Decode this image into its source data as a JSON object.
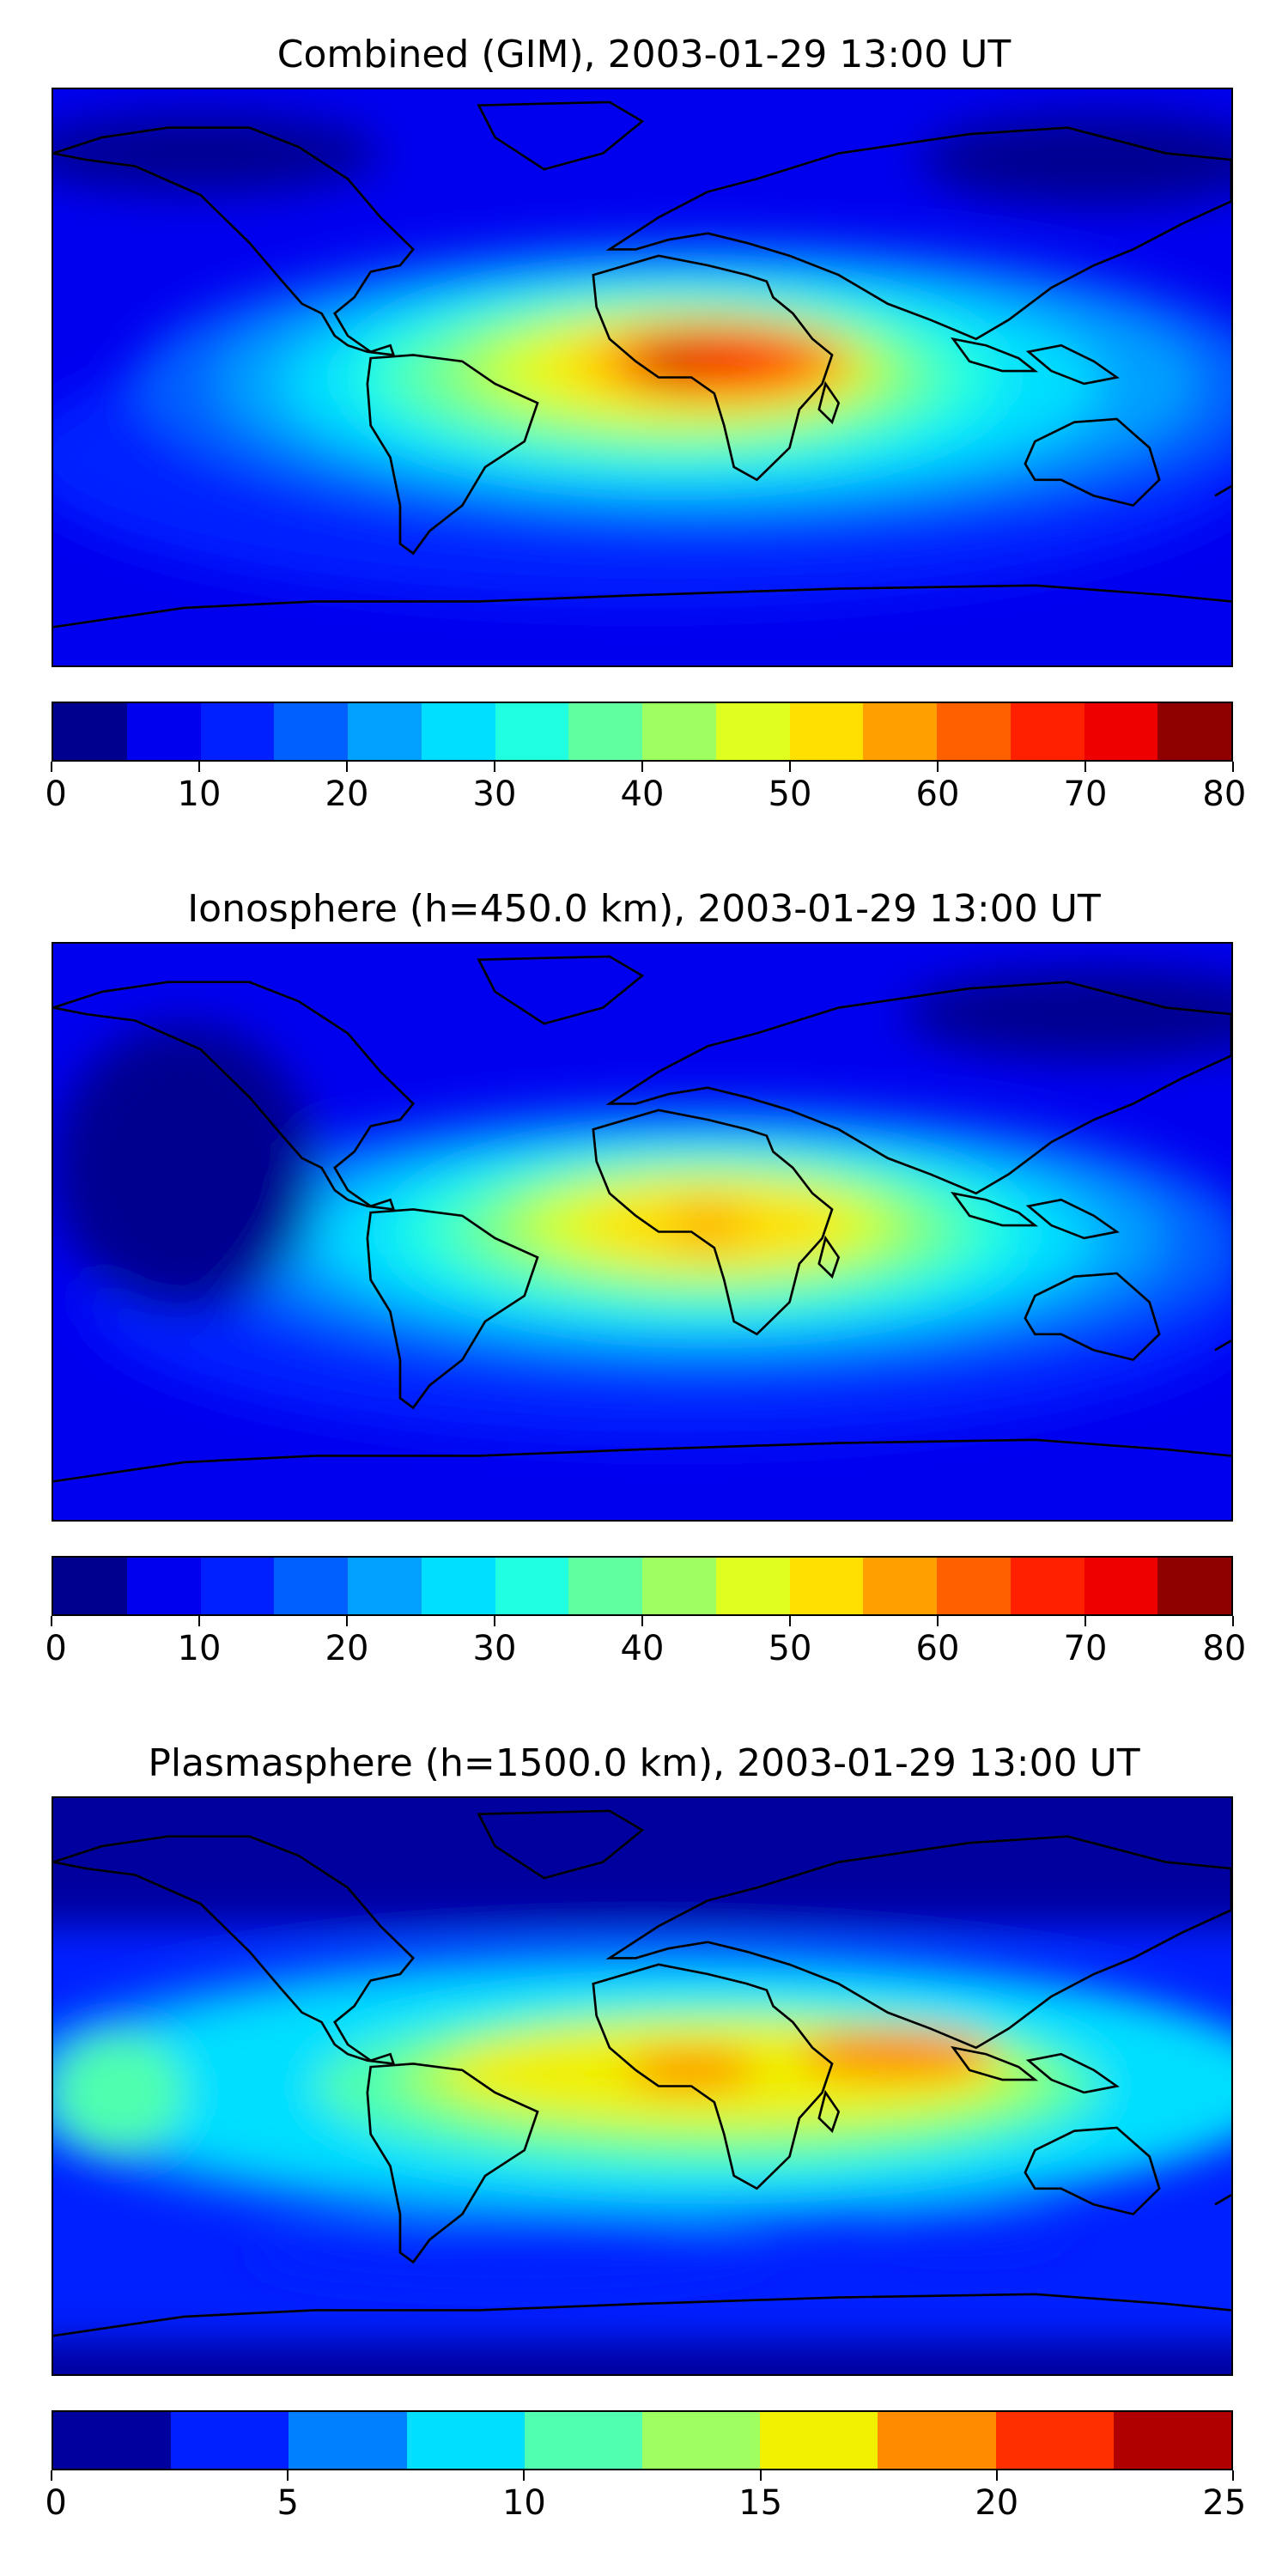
{
  "panels": [
    {
      "title": "Combined (GIM), 2003-01-29 13:00 UT",
      "colorbar": {
        "min": 0,
        "max": 80,
        "levels": 16,
        "ticks": [
          "0",
          "10",
          "20",
          "30",
          "40",
          "50",
          "60",
          "70",
          "80"
        ],
        "colors": [
          "#00008f",
          "#0000ef",
          "#0020ff",
          "#0060ff",
          "#00a0ff",
          "#00dfff",
          "#20ffdf",
          "#60ffa0",
          "#a0ff60",
          "#dfff20",
          "#ffe000",
          "#ffa000",
          "#ff6000",
          "#ff2000",
          "#ef0000",
          "#8f0000"
        ]
      },
      "field_peak_location": "Central Africa"
    },
    {
      "title": "Ionosphere  (h=450.0 km), 2003-01-29 13:00 UT",
      "colorbar": {
        "min": 0,
        "max": 80,
        "levels": 16,
        "ticks": [
          "0",
          "10",
          "20",
          "30",
          "40",
          "50",
          "60",
          "70",
          "80"
        ],
        "colors": [
          "#00008f",
          "#0000ef",
          "#0020ff",
          "#0060ff",
          "#00a0ff",
          "#00dfff",
          "#20ffdf",
          "#60ffa0",
          "#a0ff60",
          "#dfff20",
          "#ffe000",
          "#ffa000",
          "#ff6000",
          "#ff2000",
          "#ef0000",
          "#8f0000"
        ]
      },
      "field_peak_location": "Central Africa"
    },
    {
      "title": "Plasmasphere (h=1500.0 km), 2003-01-29 13:00 UT",
      "colorbar": {
        "min": 0,
        "max": 25,
        "levels": 10,
        "ticks": [
          "0",
          "5",
          "10",
          "15",
          "20",
          "25"
        ],
        "colors": [
          "#00009f",
          "#0020ff",
          "#0080ff",
          "#00dfff",
          "#50ffaf",
          "#a0ff60",
          "#f0f000",
          "#ff8c00",
          "#ff3000",
          "#b00000"
        ]
      },
      "field_peak_location": "West Africa and South Asia"
    }
  ]
}
